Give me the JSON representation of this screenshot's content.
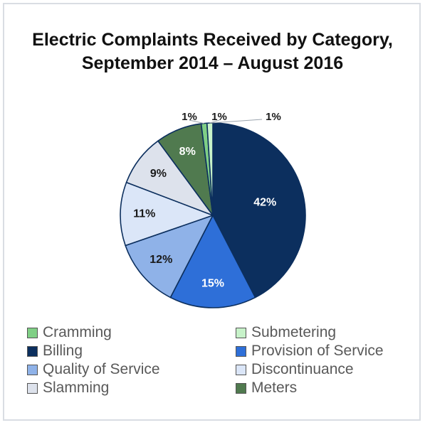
{
  "chart_data": {
    "type": "pie",
    "title_lines": [
      "Electric Complaints Received by Category,",
      "September 2014 – August 2016"
    ],
    "slices": [
      {
        "name": "Billing",
        "value": 42,
        "label": "42%",
        "color": "#0c2f5e",
        "label_color": "#ffffff"
      },
      {
        "name": "Provision of Service",
        "value": 15,
        "label": "15%",
        "color": "#2e6fd8",
        "label_color": "#ffffff"
      },
      {
        "name": "Quality of Service",
        "value": 12,
        "label": "12%",
        "color": "#8fb2e8",
        "label_color": "#1a1a1a"
      },
      {
        "name": "Discontinuance",
        "value": 11,
        "label": "11%",
        "color": "#dbe6f8",
        "label_color": "#1a1a1a"
      },
      {
        "name": "Slamming",
        "value": 9,
        "label": "9%",
        "color": "#dde2ec",
        "label_color": "#1a1a1a"
      },
      {
        "name": "Meters",
        "value": 8,
        "label": "8%",
        "color": "#507a4f",
        "label_color": "#ffffff"
      },
      {
        "name": "Cramming",
        "value": 1,
        "label": "1%",
        "color": "#7fcf85",
        "label_color": "#1a1a1a"
      },
      {
        "name": "Submetering",
        "value": 1,
        "label": "1%",
        "color": "#c7f2c9",
        "label_color": "#1a1a1a"
      }
    ],
    "legend": [
      {
        "label": "Cramming",
        "color": "#7fcf85"
      },
      {
        "label": "Submetering",
        "color": "#c7f2c9"
      },
      {
        "label": "Billing",
        "color": "#0c2f5e"
      },
      {
        "label": "Provision of Service",
        "color": "#2e6fd8"
      },
      {
        "label": "Quality of Service",
        "color": "#8fb2e8"
      },
      {
        "label": "Discontinuance",
        "color": "#dbe6f8"
      },
      {
        "label": "Slamming",
        "color": "#dde2ec"
      },
      {
        "label": "Meters",
        "color": "#507a4f"
      }
    ],
    "legend_position": "bottom"
  }
}
